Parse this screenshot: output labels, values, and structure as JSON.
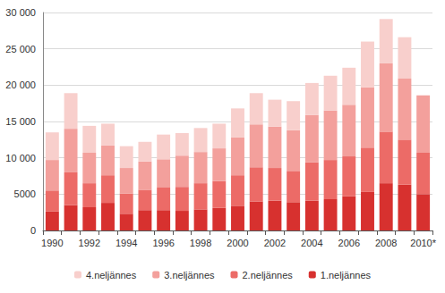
{
  "chart_data": {
    "type": "bar",
    "stacked": true,
    "grid": true,
    "legend": "bottom",
    "categories": [
      "1990",
      null,
      "1992",
      null,
      "1994",
      null,
      "1996",
      null,
      "1998",
      null,
      "2000",
      null,
      "2002",
      null,
      "2004",
      null,
      "2006",
      null,
      "2008",
      null,
      "2010*"
    ],
    "ylim": [
      0,
      30000
    ],
    "yticks": [
      0,
      5000,
      {
        "value": 10000,
        "label": "10 000"
      },
      {
        "value": 15000,
        "label": "15 000"
      },
      {
        "value": 20000,
        "label": "20 000"
      },
      {
        "value": 25000,
        "label": "25 000"
      },
      {
        "value": 30000,
        "label": "30 000"
      }
    ],
    "series": [
      {
        "name": "1.neljännes",
        "color": "#d7312f",
        "values": [
          2600,
          3500,
          3200,
          3800,
          2300,
          2800,
          2800,
          2700,
          2900,
          3100,
          3400,
          4000,
          4100,
          3900,
          4100,
          4300,
          4700,
          5300,
          6500,
          6300,
          5000
        ]
      },
      {
        "name": "2.neljännes",
        "color": "#ec6b67",
        "values": [
          2900,
          4500,
          3300,
          3800,
          2800,
          2800,
          3100,
          3300,
          3600,
          3700,
          4200,
          4700,
          4500,
          4300,
          5300,
          5400,
          5500,
          6100,
          7100,
          6200,
          5700
        ]
      },
      {
        "name": "3.neljännes",
        "color": "#f3a09c",
        "values": [
          4200,
          6000,
          4200,
          4100,
          3500,
          3900,
          3900,
          4300,
          4300,
          4500,
          5200,
          5900,
          5700,
          5600,
          6500,
          6800,
          7100,
          8300,
          9400,
          8400,
          7900
        ]
      },
      {
        "name": "4.neljännes",
        "color": "#f8cfcc",
        "values": [
          3800,
          4900,
          3700,
          3000,
          3000,
          2700,
          3400,
          3100,
          3300,
          3400,
          4000,
          4300,
          3700,
          4000,
          4400,
          4800,
          5100,
          6300,
          6100,
          5700,
          null
        ]
      }
    ]
  }
}
